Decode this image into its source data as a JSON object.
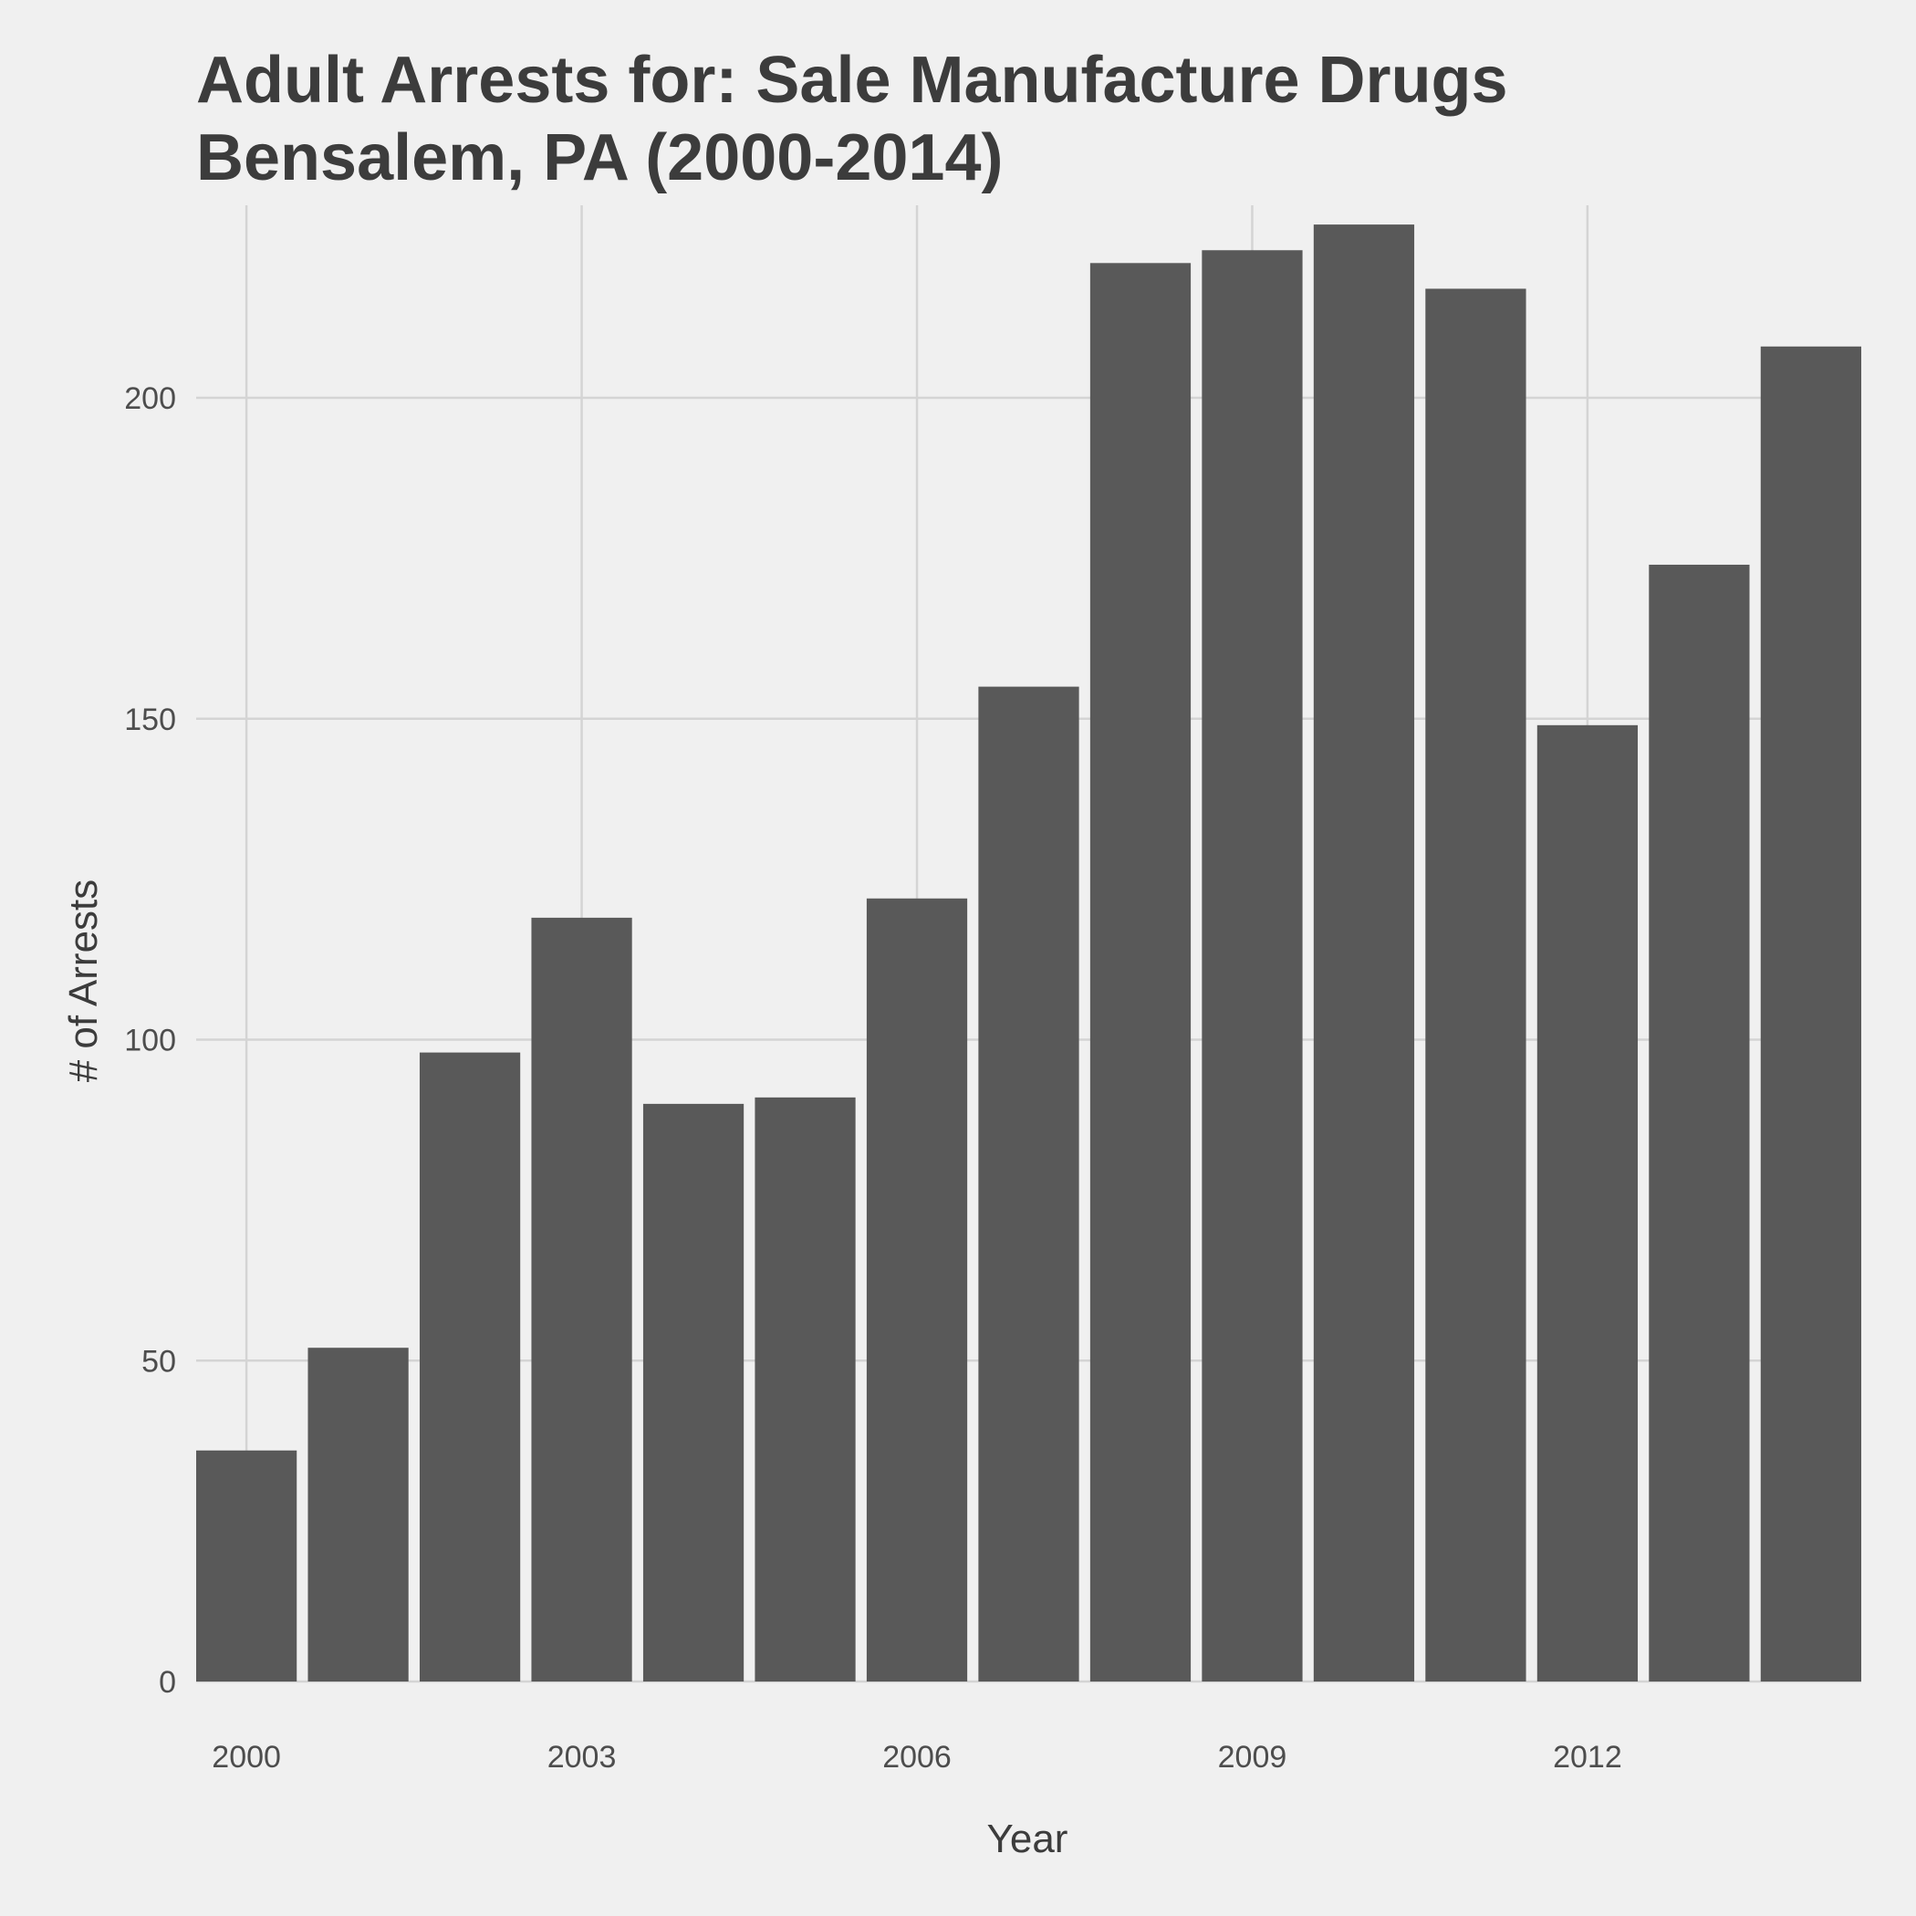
{
  "chart_data": {
    "type": "bar",
    "title_lines": [
      "Adult Arrests for: Sale Manufacture Drugs",
      "Bensalem, PA (2000-2014)"
    ],
    "xlabel": "Year",
    "ylabel": "# of Arrests",
    "x": [
      2000,
      2001,
      2002,
      2003,
      2004,
      2005,
      2006,
      2007,
      2008,
      2009,
      2010,
      2011,
      2012,
      2013,
      2014
    ],
    "values": [
      36,
      52,
      98,
      119,
      90,
      91,
      122,
      155,
      221,
      223,
      227,
      217,
      149,
      174,
      208
    ],
    "xticks": [
      2000,
      2003,
      2006,
      2009,
      2012
    ],
    "yticks": [
      0,
      50,
      100,
      150,
      200
    ],
    "ylim": [
      0,
      230
    ],
    "grid": true,
    "bar_color": "#595959",
    "background_color": "#f0f0f0",
    "grid_color": "#d4d4d4"
  }
}
